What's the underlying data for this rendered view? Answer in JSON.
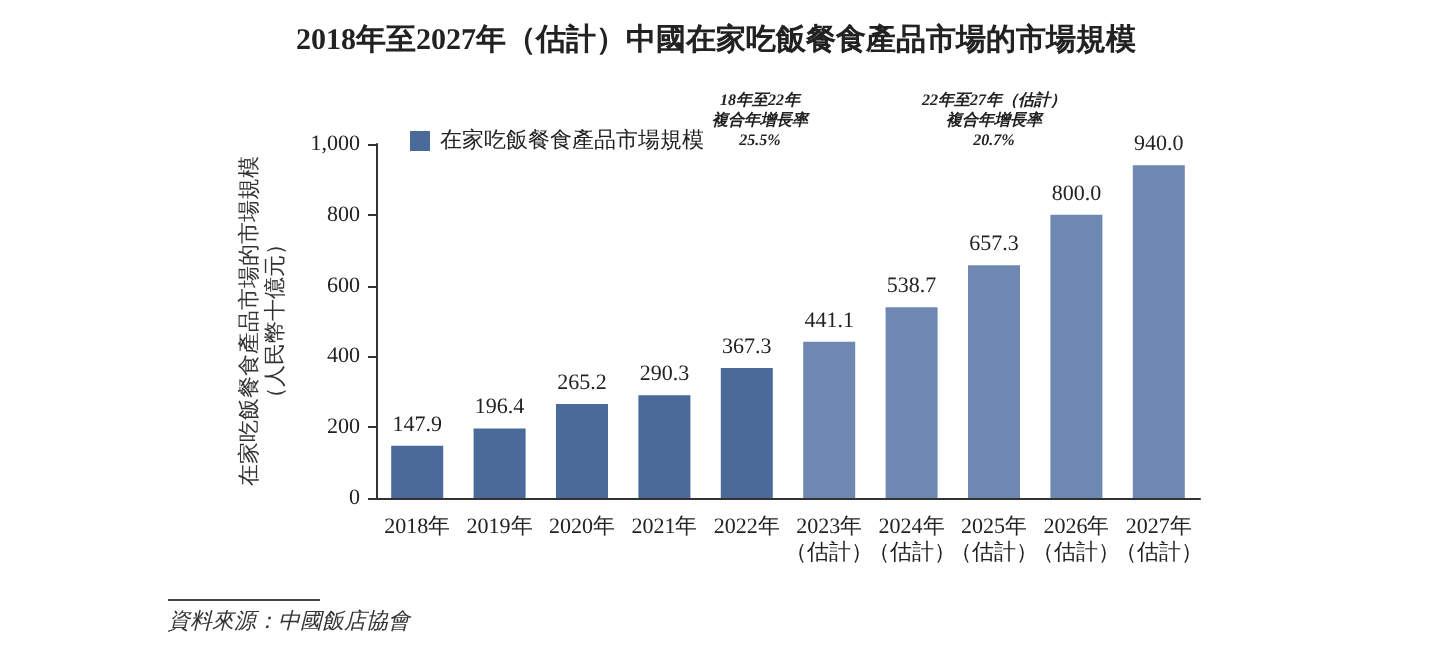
{
  "chart_data": {
    "type": "bar",
    "title": "2018年至2027年（估計）中國在家吃飯餐食產品市場的市場規模",
    "ylabel": "在家吃飯餐食產品市場的市場規模（人民幣十億元）",
    "categories": [
      "2018年",
      "2019年",
      "2020年",
      "2021年",
      "2022年",
      "2023年（估計）",
      "2024年（估計）",
      "2025年（估計）",
      "2026年（估計）",
      "2027年（估計）"
    ],
    "series": [
      {
        "name": "在家吃飯餐食產品市場規模",
        "color": "#4a6a9a",
        "colors": [
          "#4a6a9a",
          "#4a6a9a",
          "#4a6a9a",
          "#4a6a9a",
          "#4a6a9a",
          "#6f88b2",
          "#6f88b2",
          "#6f88b2",
          "#6f88b2",
          "#6f88b2"
        ],
        "values": [
          147.9,
          196.4,
          265.2,
          290.3,
          367.3,
          441.1,
          538.7,
          657.3,
          800.0,
          940.0
        ],
        "value_labels": [
          "147.9",
          "196.4",
          "265.2",
          "290.3",
          "367.3",
          "441.1",
          "538.7",
          "657.3",
          "800.0",
          "940.0"
        ]
      }
    ],
    "ylim": [
      0,
      1000
    ],
    "yticks": [
      0,
      200,
      400,
      600,
      800,
      {
        "value": 1000,
        "label": "1,000"
      }
    ],
    "grid": false,
    "legend": "top left",
    "annotations": [
      "18年至22年",
      "複合年增長率",
      "25.5%",
      "22年至27年（估計）",
      "複合年增長率",
      "20.7%",
      "資料來源：中國飯店協會"
    ]
  }
}
